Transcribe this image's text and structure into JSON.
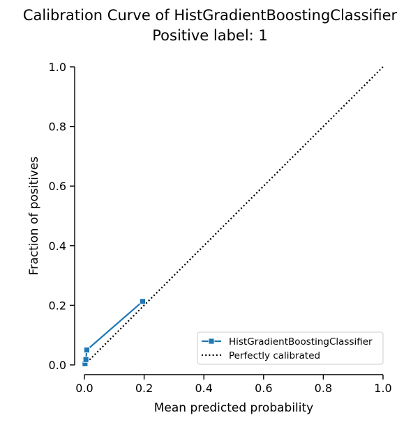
{
  "chart_data": {
    "type": "line",
    "title": "Calibration Curve of HistGradientBoostingClassifier",
    "subtitle": "Positive label: 1",
    "xlabel": "Mean predicted probability",
    "ylabel": "Fraction of positives",
    "xlim": [
      0,
      1
    ],
    "ylim": [
      0,
      1
    ],
    "xticks": [
      "0.0",
      "0.2",
      "0.4",
      "0.6",
      "0.8",
      "1.0"
    ],
    "yticks": [
      "0.0",
      "0.2",
      "0.4",
      "0.6",
      "0.8",
      "1.0"
    ],
    "grid": false,
    "legend_position": "bottom-right",
    "series": [
      {
        "name": "HistGradientBoostingClassifier",
        "color": "#1f77b4",
        "marker": "square",
        "x": [
          0.002,
          0.005,
          0.008,
          0.195
        ],
        "y": [
          0.004,
          0.018,
          0.05,
          0.213
        ]
      },
      {
        "name": "Perfectly calibrated",
        "color": "#000000",
        "linestyle": "dotted",
        "x": [
          0,
          1
        ],
        "y": [
          0,
          1
        ]
      }
    ]
  }
}
